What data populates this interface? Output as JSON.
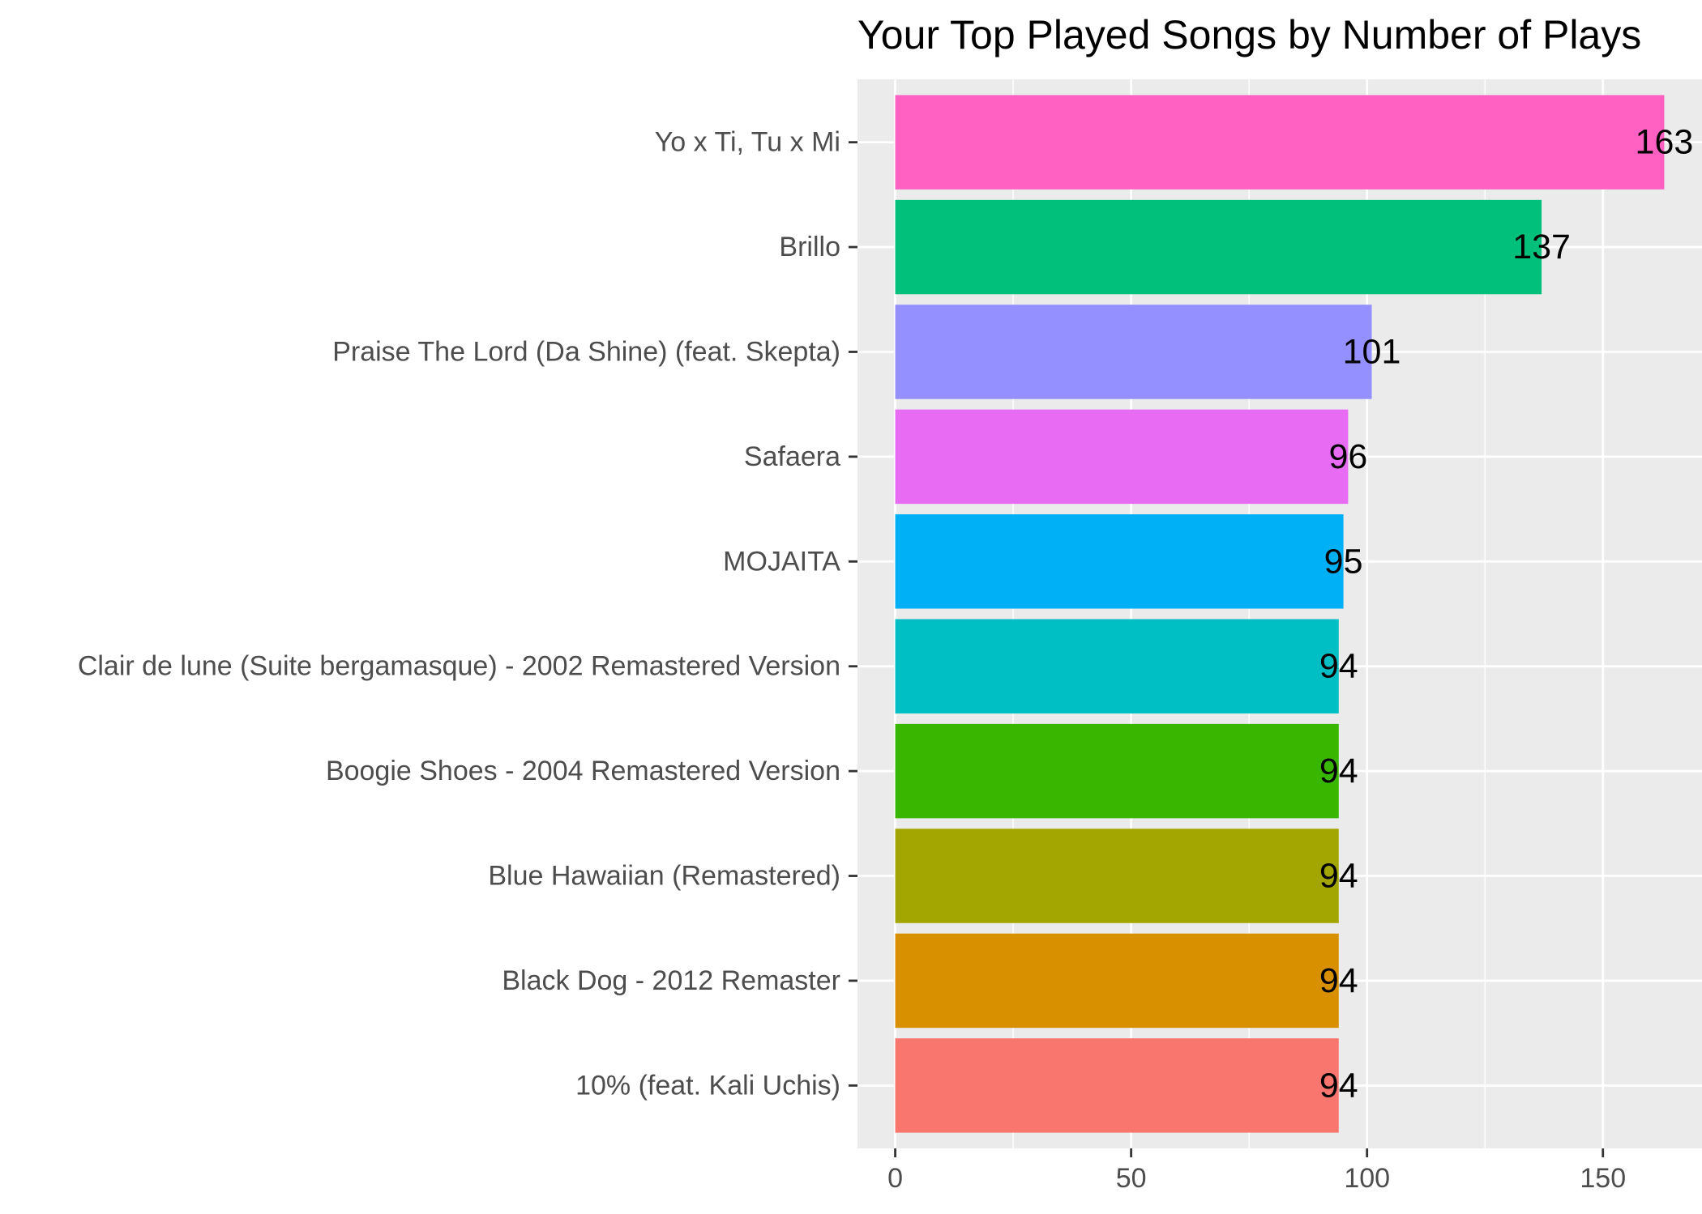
{
  "chart_data": {
    "type": "bar",
    "orientation": "horizontal",
    "title": "Your Top Played Songs by Number of Plays",
    "xlabel": "",
    "ylabel": "",
    "categories": [
      "Yo x Ti, Tu x Mi",
      "Brillo",
      "Praise The Lord (Da Shine) (feat. Skepta)",
      "Safaera",
      "MOJAITA",
      "Clair de lune (Suite bergamasque) - 2002 Remastered Version",
      "Boogie Shoes - 2004 Remastered Version",
      "Blue Hawaiian (Remastered)",
      "Black Dog - 2012 Remaster",
      "10% (feat. Kali Uchis)"
    ],
    "values": [
      163,
      137,
      101,
      96,
      95,
      94,
      94,
      94,
      94,
      94
    ],
    "colors": [
      "#FF61C3",
      "#00C07B",
      "#9590FF",
      "#E76BF3",
      "#00B0F6",
      "#00BFC4",
      "#39B600",
      "#A3A500",
      "#D89000",
      "#F8766D"
    ],
    "xlim": [
      -8,
      171
    ],
    "xticks": [
      0,
      50,
      100,
      150
    ],
    "grid": true,
    "legend": "none",
    "panel_background": "#EBEBEB"
  }
}
